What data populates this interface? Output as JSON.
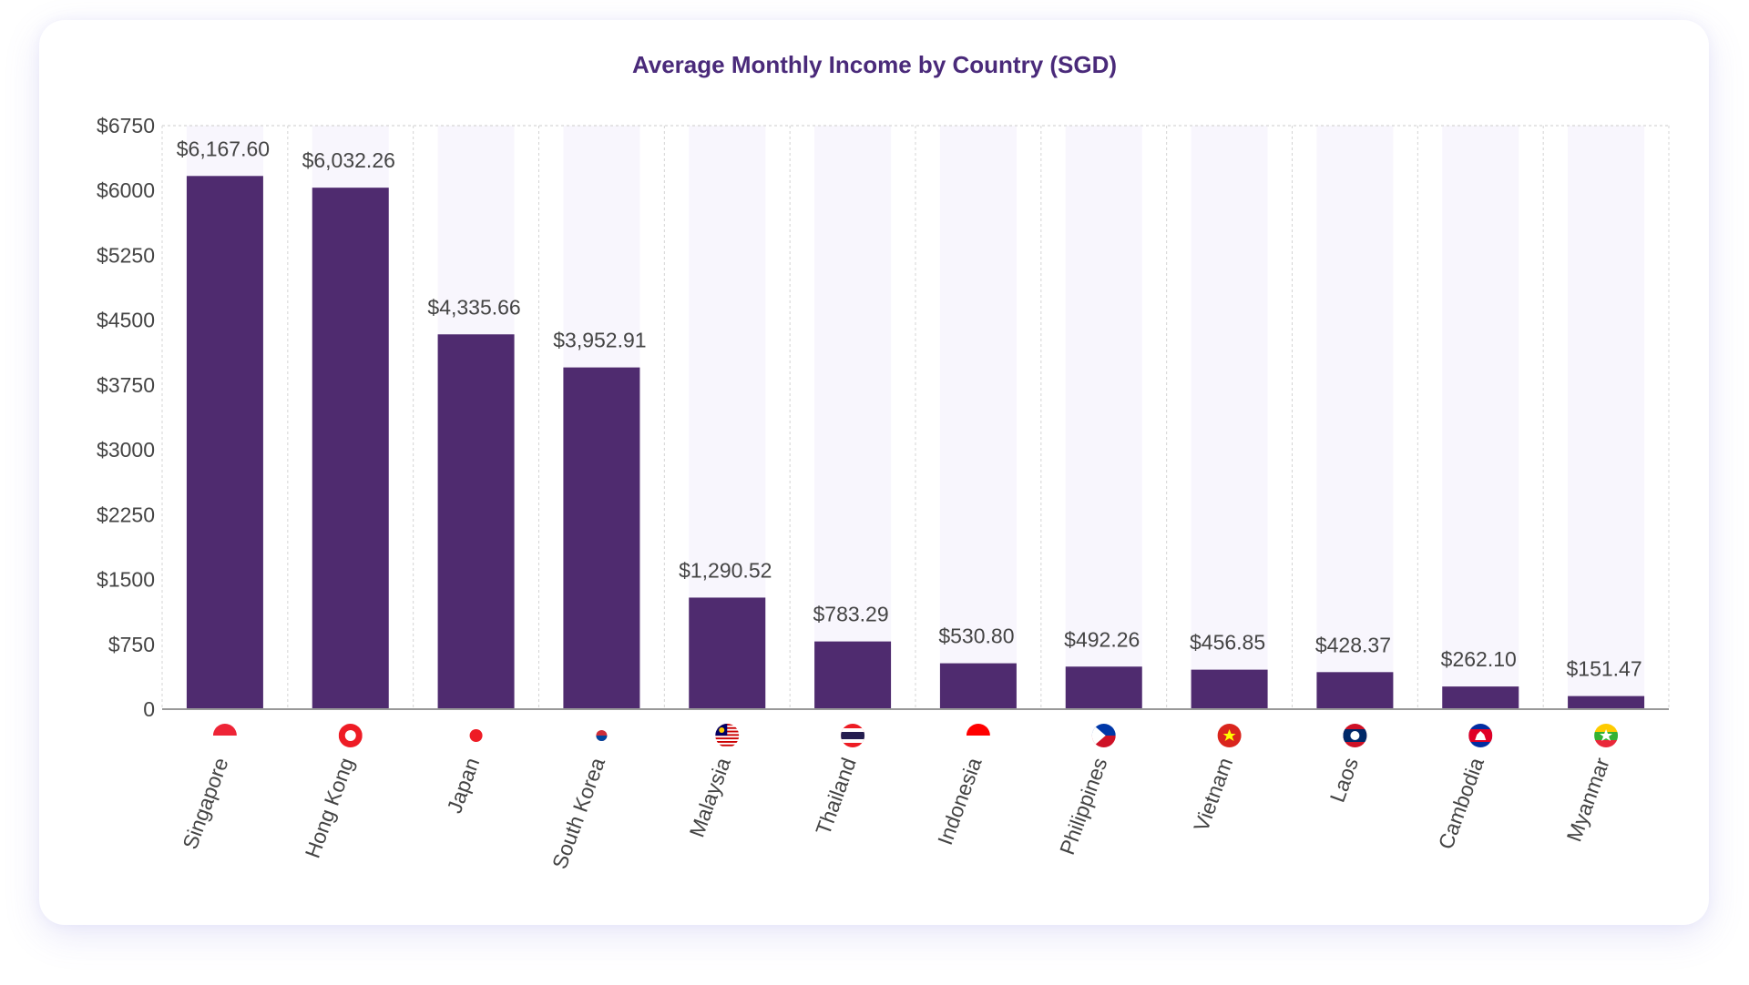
{
  "chart_data": {
    "type": "bar",
    "title": "Average Monthly Income by Country (SGD)",
    "xlabel": "",
    "ylabel": "",
    "ylim": [
      0,
      6750
    ],
    "yticks": [
      0,
      750,
      1500,
      2250,
      3000,
      3750,
      4500,
      5250,
      6000,
      6750
    ],
    "ytick_labels": [
      "0",
      "$750",
      "$1500",
      "$2250",
      "$3000",
      "$3750",
      "$4500",
      "$5250",
      "$6000",
      "$6750"
    ],
    "grid": true,
    "categories": [
      "Singapore",
      "Hong Kong",
      "Japan",
      "South Korea",
      "Malaysia",
      "Thailand",
      "Indonesia",
      "Philippines",
      "Vietnam",
      "Laos",
      "Cambodia",
      "Myanmar"
    ],
    "values": [
      6167.6,
      6032.26,
      4335.66,
      3952.91,
      1290.52,
      783.29,
      530.8,
      492.26,
      456.85,
      428.37,
      262.1,
      151.47
    ],
    "data_labels": [
      "$6,167.60",
      "$6,032.26",
      "$4,335.66",
      "$3,952.91",
      "$1,290.52",
      "$783.29",
      "$530.80",
      "$492.26",
      "$456.85",
      "$428.37",
      "$262.10",
      "$151.47"
    ],
    "flags": [
      "sg-flag-icon",
      "hk-flag-icon",
      "jp-flag-icon",
      "kr-flag-icon",
      "my-flag-icon",
      "th-flag-icon",
      "id-flag-icon",
      "ph-flag-icon",
      "vn-flag-icon",
      "la-flag-icon",
      "kh-flag-icon",
      "mm-flag-icon"
    ],
    "colors": {
      "bar": "#4f2b6f",
      "bar_background": "#f8f6fd",
      "title": "#4a2a7a"
    }
  }
}
